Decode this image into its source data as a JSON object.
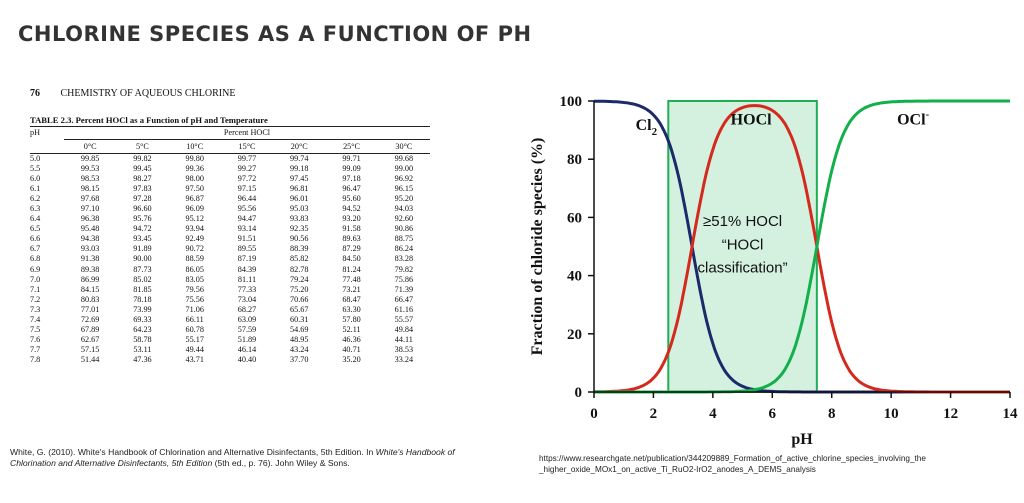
{
  "slide": {
    "title": "CHLORINE SPECIES AS A FUNCTION OF PH"
  },
  "book": {
    "page_number": "76",
    "running_head": "CHEMISTRY OF AQUEOUS CHLORINE",
    "table_caption": "TABLE 2.3.  Percent HOCl as a Function of pH and Temperature",
    "header_ph": "pH",
    "header_group": "Percent HOCl",
    "temperatures": [
      "0°C",
      "5°C",
      "10°C",
      "15°C",
      "20°C",
      "25°C",
      "30°C"
    ],
    "rows": [
      [
        "5.0",
        "99.85",
        "99.82",
        "99.80",
        "99.77",
        "99.74",
        "99.71",
        "99.68"
      ],
      [
        "5.5",
        "99.53",
        "99.45",
        "99.36",
        "99.27",
        "99.18",
        "99.09",
        "99.00"
      ],
      [
        "6.0",
        "98.53",
        "98.27",
        "98.00",
        "97.72",
        "97.45",
        "97.18",
        "96.92"
      ],
      [
        "6.1",
        "98.15",
        "97.83",
        "97.50",
        "97.15",
        "96.81",
        "96.47",
        "96.15"
      ],
      [
        "6.2",
        "97.68",
        "97.28",
        "96.87",
        "96.44",
        "96.01",
        "95.60",
        "95.20"
      ],
      [
        "6.3",
        "97.10",
        "96.60",
        "96.09",
        "95.56",
        "95.03",
        "94.52",
        "94.03"
      ],
      [
        "6.4",
        "96.38",
        "95.76",
        "95.12",
        "94.47",
        "93.83",
        "93.20",
        "92.60"
      ],
      [
        "6.5",
        "95.48",
        "94.72",
        "93.94",
        "93.14",
        "92.35",
        "91.58",
        "90.86"
      ],
      [
        "6.6",
        "94.38",
        "93.45",
        "92.49",
        "91.51",
        "90.56",
        "89.63",
        "88.75"
      ],
      [
        "6.7",
        "93.03",
        "91.89",
        "90.72",
        "89.55",
        "88.39",
        "87.29",
        "86.24"
      ],
      [
        "6.8",
        "91.38",
        "90.00",
        "88.59",
        "87.19",
        "85.82",
        "84.50",
        "83.28"
      ],
      [
        "6.9",
        "89.38",
        "87.73",
        "86.05",
        "84.39",
        "82.78",
        "81.24",
        "79.82"
      ],
      [
        "7.0",
        "86.99",
        "85.02",
        "83.05",
        "81.11",
        "79.24",
        "77.48",
        "75.86"
      ],
      [
        "7.1",
        "84.15",
        "81.85",
        "79.56",
        "77.33",
        "75.20",
        "73.21",
        "71.39"
      ],
      [
        "7.2",
        "80.83",
        "78.18",
        "75.56",
        "73.04",
        "70.66",
        "68.47",
        "66.47"
      ],
      [
        "7.3",
        "77.01",
        "73.99",
        "71.06",
        "68.27",
        "65.67",
        "63.30",
        "61.16"
      ],
      [
        "7.4",
        "72.69",
        "69.33",
        "66.11",
        "63.09",
        "60.31",
        "57.80",
        "55.57"
      ],
      [
        "7.5",
        "67.89",
        "64.23",
        "60.78",
        "57.59",
        "54.69",
        "52.11",
        "49.84"
      ],
      [
        "7.6",
        "62.67",
        "58.78",
        "55.17",
        "51.89",
        "48.95",
        "46.36",
        "44.11"
      ],
      [
        "7.7",
        "57.15",
        "53.11",
        "49.44",
        "46.14",
        "43.24",
        "40.71",
        "38.53"
      ],
      [
        "7.8",
        "51.44",
        "47.36",
        "43.71",
        "40.40",
        "37.70",
        "35.20",
        "33.24"
      ]
    ]
  },
  "citations": {
    "left_prefix": "White, G. (2010). White's Handbook of Chlorination and Alternative Disinfectants, 5th Edition. In ",
    "left_italic": "White's Handbook of Chlorination and Alternative Disinfectants, 5th Edition",
    "left_suffix": " (5th ed., p. 76). John Wiley & Sons.",
    "right": "https://www.researchgate.net/publication/344209889_Formation_of_active_chlorine_species_involving_the _higher_oxide_MOx1_on_active_Ti_RuO2-IrO2_anodes_A_DEMS_analysis"
  },
  "chart_data": {
    "type": "line",
    "title": "",
    "xlabel": "pH",
    "ylabel": "Fraction of chloride  species (%)",
    "xlim": [
      0,
      14
    ],
    "ylim": [
      0,
      100
    ],
    "xticks": [
      "0",
      "2",
      "4",
      "6",
      "8",
      "10",
      "12",
      "14"
    ],
    "yticks": [
      "0",
      "20",
      "40",
      "60",
      "80",
      "100"
    ],
    "pKa1": 3.3,
    "pKa2": 7.5,
    "series": [
      {
        "name": "Cl2",
        "label_main": "Cl",
        "label_sub": "2",
        "color": "#1b2a6b",
        "x": [
          0,
          1,
          2,
          2.5,
          3,
          3.3,
          3.5,
          4,
          4.5,
          5,
          6,
          7,
          8,
          10,
          14
        ],
        "values": [
          99.9,
          99.5,
          95.2,
          86.3,
          66.6,
          50.0,
          38.7,
          16.6,
          5.9,
          2.0,
          0.2,
          0.0,
          0.0,
          0.0,
          0.0
        ]
      },
      {
        "name": "HOCl",
        "label_main": "HOCl",
        "color": "#d42a1e",
        "x": [
          0,
          1,
          2,
          2.5,
          3,
          3.3,
          3.5,
          4,
          4.5,
          5,
          6,
          7,
          7.5,
          8,
          8.5,
          9,
          10,
          14
        ],
        "values": [
          0.1,
          0.5,
          4.8,
          13.7,
          33.4,
          50.0,
          61.3,
          83.4,
          94.1,
          97.9,
          96.8,
          76.0,
          50.0,
          24.0,
          9.1,
          3.1,
          0.3,
          0.0
        ]
      },
      {
        "name": "OCl-",
        "label_main": "OCl",
        "label_sup": "-",
        "color": "#12b04a",
        "x": [
          0,
          4,
          5,
          6,
          7,
          7.5,
          8,
          8.5,
          9,
          10,
          11,
          14
        ],
        "values": [
          0.0,
          0.0,
          0.3,
          3.1,
          24.0,
          50.0,
          76.0,
          90.9,
          96.9,
          99.7,
          100.0,
          100.0
        ]
      }
    ],
    "annotation": {
      "region_x": [
        2.5,
        7.5
      ],
      "fill_color": "#d4f0de",
      "edge_color": "#1fae55",
      "lines": [
        "≥51% HOCl",
        "“HOCl",
        "classification”"
      ]
    }
  }
}
